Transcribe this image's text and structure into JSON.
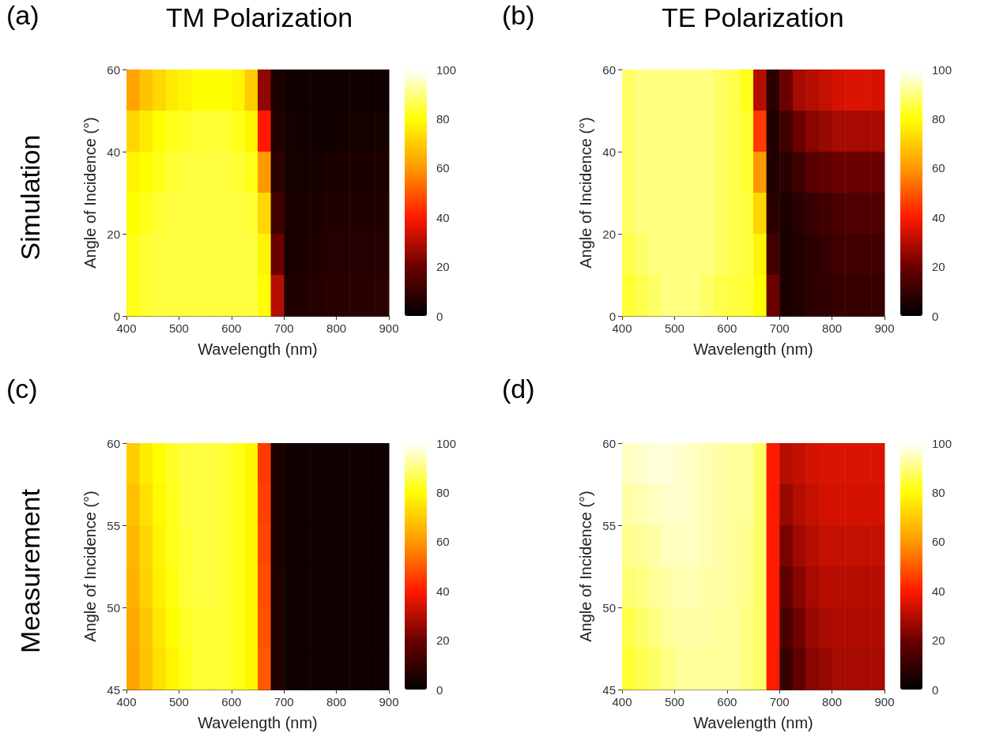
{
  "chart_data": [
    {
      "type": "heatmap",
      "title": "TM Polarization",
      "annotations": [
        "(a)",
        "Simulation"
      ],
      "xlabel": "Wavelength (nm)",
      "ylabel": "Angle of Incidence (°)",
      "xlim": [
        400,
        900
      ],
      "xticks": [
        400,
        500,
        600,
        700,
        800,
        900
      ],
      "ylim": [
        0,
        60
      ],
      "yticks": [
        0,
        20,
        40,
        60
      ],
      "clim": [
        0,
        100
      ],
      "cticks": [
        0,
        20,
        40,
        60,
        80,
        100
      ],
      "cells": [
        [
          62,
          68,
          72,
          76,
          78,
          80,
          80,
          80,
          78,
          70,
          25,
          5,
          3,
          3,
          3,
          3,
          3,
          3,
          3,
          3
        ],
        [
          72,
          76,
          80,
          82,
          83,
          84,
          84,
          84,
          82,
          78,
          40,
          6,
          4,
          3,
          3,
          3,
          4,
          4,
          4,
          4
        ],
        [
          78,
          80,
          82,
          84,
          85,
          85,
          85,
          85,
          84,
          82,
          60,
          8,
          4,
          4,
          4,
          5,
          5,
          5,
          5,
          5
        ],
        [
          80,
          82,
          84,
          85,
          85,
          85,
          85,
          85,
          85,
          84,
          72,
          12,
          5,
          5,
          5,
          6,
          6,
          6,
          6,
          6
        ],
        [
          82,
          84,
          85,
          85,
          85,
          85,
          85,
          85,
          85,
          85,
          78,
          20,
          5,
          5,
          6,
          7,
          7,
          7,
          7,
          7
        ],
        [
          82,
          84,
          85,
          85,
          85,
          85,
          85,
          85,
          85,
          85,
          80,
          30,
          6,
          6,
          7,
          8,
          8,
          8,
          8,
          8
        ]
      ]
    },
    {
      "type": "heatmap",
      "title": "TE Polarization",
      "annotations": [
        "(b)"
      ],
      "xlabel": "Wavelength (nm)",
      "ylabel": "Angle of Incidence (°)",
      "xlim": [
        400,
        900
      ],
      "xticks": [
        400,
        500,
        600,
        700,
        800,
        900
      ],
      "ylim": [
        0,
        60
      ],
      "yticks": [
        0,
        20,
        40,
        60
      ],
      "clim": [
        0,
        100
      ],
      "cticks": [
        0,
        20,
        40,
        60,
        80,
        100
      ],
      "cells": [
        [
          88,
          90,
          90,
          90,
          90,
          90,
          90,
          88,
          86,
          82,
          30,
          8,
          20,
          28,
          30,
          32,
          34,
          35,
          35,
          34
        ],
        [
          88,
          90,
          90,
          90,
          90,
          90,
          90,
          88,
          86,
          84,
          45,
          6,
          12,
          20,
          24,
          26,
          28,
          28,
          28,
          28
        ],
        [
          88,
          90,
          90,
          90,
          90,
          90,
          90,
          88,
          86,
          84,
          60,
          6,
          8,
          12,
          16,
          18,
          20,
          20,
          20,
          20
        ],
        [
          88,
          90,
          90,
          90,
          90,
          90,
          90,
          88,
          86,
          85,
          72,
          8,
          5,
          8,
          10,
          12,
          14,
          15,
          15,
          15
        ],
        [
          86,
          88,
          90,
          90,
          90,
          90,
          90,
          88,
          86,
          85,
          78,
          12,
          5,
          6,
          8,
          10,
          12,
          12,
          12,
          12
        ],
        [
          84,
          86,
          88,
          90,
          90,
          90,
          88,
          86,
          85,
          84,
          80,
          20,
          5,
          6,
          8,
          9,
          10,
          10,
          10,
          10
        ]
      ]
    },
    {
      "type": "heatmap",
      "annotations": [
        "(c)",
        "Measurement"
      ],
      "xlabel": "Wavelength (nm)",
      "ylabel": "Angle of Incidence (°)",
      "xlim": [
        400,
        900
      ],
      "xticks": [
        400,
        500,
        600,
        700,
        800,
        900
      ],
      "ylim": [
        45,
        60
      ],
      "yticks": [
        45,
        50,
        55,
        60
      ],
      "clim": [
        0,
        100
      ],
      "cticks": [
        0,
        20,
        40,
        60,
        80,
        100
      ],
      "cells": [
        [
          70,
          76,
          80,
          83,
          85,
          85,
          85,
          84,
          82,
          78,
          45,
          5,
          3,
          3,
          3,
          3,
          3,
          3,
          3,
          3
        ],
        [
          68,
          74,
          79,
          82,
          85,
          85,
          85,
          84,
          82,
          78,
          46,
          5,
          3,
          3,
          3,
          3,
          3,
          3,
          3,
          3
        ],
        [
          66,
          72,
          78,
          82,
          84,
          85,
          85,
          84,
          82,
          78,
          47,
          5,
          3,
          3,
          3,
          3,
          3,
          3,
          3,
          3
        ],
        [
          65,
          71,
          77,
          81,
          84,
          85,
          85,
          84,
          82,
          78,
          48,
          6,
          3,
          3,
          3,
          3,
          3,
          3,
          3,
          3
        ],
        [
          63,
          69,
          75,
          80,
          83,
          84,
          84,
          84,
          82,
          78,
          49,
          6,
          3,
          3,
          3,
          3,
          3,
          3,
          3,
          3
        ],
        [
          62,
          68,
          74,
          78,
          82,
          84,
          84,
          84,
          82,
          78,
          50,
          6,
          3,
          3,
          3,
          3,
          3,
          3,
          3,
          3
        ]
      ]
    },
    {
      "type": "heatmap",
      "annotations": [
        "(d)"
      ],
      "xlabel": "Wavelength (nm)",
      "ylabel": "Angle of Incidence (°)",
      "xlim": [
        400,
        900
      ],
      "xticks": [
        400,
        500,
        600,
        700,
        800,
        900
      ],
      "ylim": [
        45,
        60
      ],
      "yticks": [
        45,
        50,
        55,
        60
      ],
      "clim": [
        0,
        100
      ],
      "cticks": [
        0,
        20,
        40,
        60,
        80,
        100
      ],
      "cells": [
        [
          95,
          96,
          97,
          97,
          96,
          95,
          94,
          93,
          92,
          92,
          88,
          40,
          30,
          32,
          34,
          35,
          35,
          35,
          35,
          35
        ],
        [
          93,
          94,
          95,
          96,
          96,
          95,
          94,
          93,
          92,
          92,
          88,
          40,
          26,
          30,
          32,
          34,
          34,
          34,
          34,
          34
        ],
        [
          91,
          92,
          93,
          95,
          95,
          95,
          94,
          93,
          92,
          91,
          88,
          40,
          22,
          27,
          30,
          32,
          32,
          32,
          32,
          32
        ],
        [
          89,
          90,
          92,
          93,
          94,
          94,
          93,
          93,
          92,
          91,
          88,
          40,
          18,
          24,
          28,
          30,
          30,
          30,
          30,
          30
        ],
        [
          86,
          88,
          90,
          92,
          93,
          93,
          93,
          92,
          92,
          90,
          88,
          40,
          14,
          21,
          26,
          28,
          29,
          29,
          29,
          29
        ],
        [
          84,
          86,
          88,
          90,
          92,
          92,
          92,
          92,
          92,
          90,
          88,
          40,
          10,
          18,
          24,
          26,
          28,
          28,
          28,
          28
        ]
      ]
    }
  ]
}
